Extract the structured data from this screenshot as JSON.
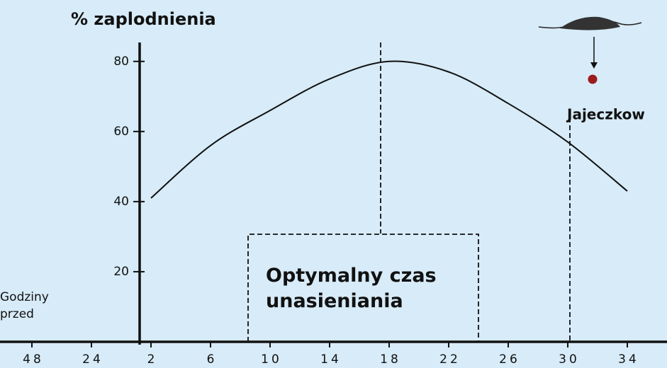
{
  "chart_data": {
    "type": "line",
    "title": "% zaplodnienia",
    "x_label": "Godziny przed",
    "annotations": [
      "Optymalny czas unasieniania",
      "Jajeczkow"
    ],
    "categories": [
      "48",
      "24",
      "2",
      "6",
      "10",
      "14",
      "18",
      "22",
      "26",
      "30",
      "34"
    ],
    "series": [
      {
        "color": "#111111",
        "values": [
          null,
          null,
          41,
          56,
          66,
          75,
          80,
          77,
          68,
          57,
          43
        ]
      }
    ],
    "ylim": [
      0,
      85
    ],
    "yticks": [
      20,
      40,
      60,
      80
    ],
    "grid": false
  }
}
